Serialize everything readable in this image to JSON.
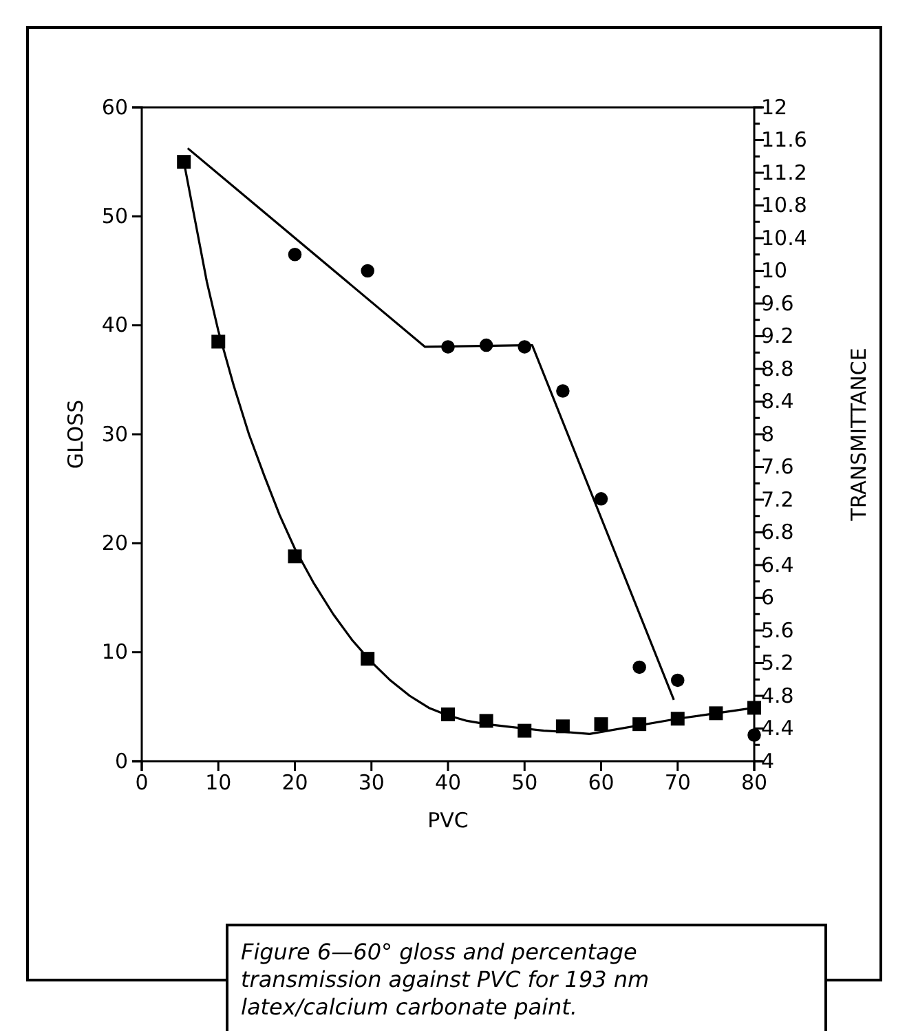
{
  "chart_data": {
    "type": "scatter",
    "xlabel": "PVC",
    "ylabel": "GLOSS",
    "y2label": "TRANSMITTANCE",
    "xlim": [
      0,
      80
    ],
    "xticks": [
      0,
      10,
      20,
      30,
      40,
      50,
      60,
      70,
      80
    ],
    "ylim": [
      0,
      60
    ],
    "yticks": [
      0,
      10,
      20,
      30,
      40,
      50,
      60
    ],
    "y2lim": [
      4,
      12
    ],
    "y2ticks": [
      4,
      {
        "value": 4.2,
        "label": null
      },
      4.4,
      {
        "value": 4.6,
        "label": null
      },
      4.8,
      {
        "value": 5,
        "label": null
      },
      5.2,
      {
        "value": 5.4,
        "label": null
      },
      5.6,
      {
        "value": 5.8,
        "label": null
      },
      6,
      {
        "value": 6.2,
        "label": null
      },
      6.4,
      {
        "value": 6.6,
        "label": null
      },
      6.8,
      {
        "value": 7,
        "label": null
      },
      7.2,
      {
        "value": 7.4,
        "label": null
      },
      7.6,
      {
        "value": 7.8,
        "label": null
      },
      8,
      {
        "value": 8.2,
        "label": null
      },
      8.4,
      {
        "value": 8.6,
        "label": null
      },
      8.8,
      {
        "value": 9,
        "label": null
      },
      9.2,
      {
        "value": 9.4,
        "label": null
      },
      9.6,
      {
        "value": 9.8,
        "label": null
      },
      10,
      {
        "value": 10.2,
        "label": null
      },
      10.4,
      {
        "value": 10.6,
        "label": null
      },
      10.8,
      {
        "value": 11,
        "label": null
      },
      11.2,
      {
        "value": 11.4,
        "label": null
      },
      11.6,
      {
        "value": 11.8,
        "label": null
      },
      12
    ],
    "grid": false,
    "series": [
      {
        "marker": "square",
        "color": "#000000",
        "x": [
          5.5,
          10,
          20,
          29.5,
          40,
          45,
          50,
          55,
          60,
          65,
          70,
          75,
          80
        ],
        "values": [
          55,
          38.5,
          18.8,
          9.4,
          4.3,
          3.7,
          2.8,
          3.2,
          3.4,
          3.4,
          3.9,
          4.4,
          4.9
        ]
      },
      {
        "marker": "circle",
        "color": "#000000",
        "axis": "y2",
        "x": [
          20,
          29.5,
          40,
          45,
          50,
          55,
          60,
          65,
          70,
          80
        ],
        "values": [
          10.2,
          10,
          9.07,
          9.09,
          9.07,
          8.53,
          7.21,
          5.15,
          4.99,
          4.32
        ]
      },
      {
        "type": "line",
        "marker": "none",
        "color": "#000000",
        "x": [
          5.5,
          7,
          8.5,
          10,
          12,
          14,
          16,
          18,
          20,
          22.5,
          25,
          27.5,
          30,
          32.5,
          35,
          37.5,
          40,
          42.5,
          45,
          47.5,
          50,
          52.5,
          55,
          58.5,
          70,
          80
        ],
        "values": [
          55,
          49.5,
          44,
          39.5,
          34.5,
          30,
          26.2,
          22.6,
          19.5,
          16.3,
          13.5,
          11.1,
          9.1,
          7.4,
          6,
          4.9,
          4.2,
          3.7,
          3.4,
          3.2,
          3,
          2.8,
          2.7,
          2.5,
          3.9,
          4.9
        ]
      },
      {
        "type": "line",
        "marker": "none",
        "color": "#000000",
        "axis": "y2",
        "x": [
          6,
          37,
          51,
          69.5
        ],
        "values": [
          11.5,
          9.07,
          9.09,
          4.75
        ]
      }
    ],
    "annotations": [
      "Figure 6—60° gloss and percentage transmission against PVC for 193 nm latex/calcium carbonate paint."
    ]
  }
}
